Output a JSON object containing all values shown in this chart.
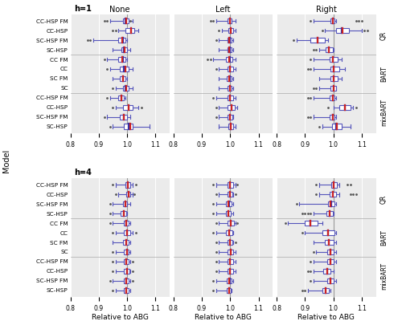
{
  "title_h1": "h=1",
  "title_h4": "h=4",
  "xlabel": "Relative to ABG",
  "ylabel": "Model",
  "col_labels": [
    "None",
    "Left",
    "Right"
  ],
  "row_labels": [
    "CC-HSP FM",
    "CC-HSP",
    "SC-HSP FM",
    "SC-HSP",
    "CC FM",
    "CC",
    "SC FM",
    "SC",
    "CC-HSP FM",
    "CC-HSP",
    "SC-HSP FM",
    "SC-HSP"
  ],
  "group_labels": [
    "QR",
    "BART",
    "mixBART"
  ],
  "h1_data": {
    "None": {
      "CC-HSP FM": {
        "q1": 0.985,
        "median": 0.995,
        "q3": 1.005,
        "whislo": 0.94,
        "whishi": 1.02,
        "mean": 0.997,
        "fliers": [
          0.93,
          0.92,
          1.01
        ]
      },
      "CC-HSP": {
        "q1": 0.995,
        "median": 1.015,
        "q3": 1.025,
        "whislo": 0.97,
        "whishi": 1.04,
        "mean": 1.015,
        "fliers": [
          0.96,
          0.95
        ]
      },
      "SC-HSP FM": {
        "q1": 0.97,
        "median": 0.985,
        "q3": 0.995,
        "whislo": 0.88,
        "whishi": 1.0,
        "mean": 0.982,
        "fliers": [
          0.87,
          0.86
        ]
      },
      "SC-HSP": {
        "q1": 0.98,
        "median": 0.99,
        "q3": 1.0,
        "whislo": 0.95,
        "whishi": 1.01,
        "mean": 0.991,
        "fliers": []
      },
      "CC FM": {
        "q1": 0.97,
        "median": 0.985,
        "q3": 0.995,
        "whislo": 0.93,
        "whishi": 1.0,
        "mean": 0.984,
        "fliers": [
          0.92
        ]
      },
      "CC": {
        "q1": 0.975,
        "median": 0.99,
        "q3": 1.005,
        "whislo": 0.94,
        "whishi": 1.02,
        "mean": 0.993,
        "fliers": [
          0.93
        ]
      },
      "SC FM": {
        "q1": 0.975,
        "median": 0.985,
        "q3": 0.995,
        "whislo": 0.95,
        "whishi": 1.0,
        "mean": 0.985,
        "fliers": []
      },
      "SC": {
        "q1": 0.985,
        "median": 0.995,
        "q3": 1.005,
        "whislo": 0.96,
        "whishi": 1.02,
        "mean": 0.996,
        "fliers": [
          0.95
        ]
      },
      "CC-HSP FM2": {
        "q1": 0.97,
        "median": 0.98,
        "q3": 0.99,
        "whislo": 0.94,
        "whishi": 0.995,
        "mean": 0.979,
        "fliers": [
          0.93
        ]
      },
      "CC-HSP2": {
        "q1": 0.985,
        "median": 1.005,
        "q3": 1.02,
        "whislo": 0.96,
        "whishi": 1.04,
        "mean": 1.007,
        "fliers": [
          0.95,
          1.05
        ]
      },
      "SC-HSP FM2": {
        "q1": 0.975,
        "median": 0.99,
        "q3": 1.0,
        "whislo": 0.93,
        "whishi": 1.01,
        "mean": 0.99,
        "fliers": [
          0.92
        ]
      },
      "SC-HSP2": {
        "q1": 0.99,
        "median": 1.005,
        "q3": 1.02,
        "whislo": 0.95,
        "whishi": 1.08,
        "mean": 1.01,
        "fliers": [
          0.94
        ]
      }
    },
    "Left": {
      "CC-HSP FM": {
        "q1": 0.99,
        "median": 0.998,
        "q3": 1.006,
        "whislo": 0.95,
        "whishi": 1.02,
        "mean": 0.998,
        "fliers": [
          0.94,
          0.93
        ]
      },
      "CC-HSP": {
        "q1": 0.993,
        "median": 1.002,
        "q3": 1.01,
        "whislo": 0.97,
        "whishi": 1.02,
        "mean": 1.002,
        "fliers": [
          0.96
        ]
      },
      "SC-HSP FM": {
        "q1": 0.99,
        "median": 0.998,
        "q3": 1.005,
        "whislo": 0.96,
        "whishi": 1.01,
        "mean": 0.997,
        "fliers": [
          0.95
        ]
      },
      "SC-HSP": {
        "q1": 0.99,
        "median": 0.998,
        "q3": 1.005,
        "whislo": 0.96,
        "whishi": 1.01,
        "mean": 0.997,
        "fliers": []
      },
      "CC FM": {
        "q1": 0.985,
        "median": 0.998,
        "q3": 1.008,
        "whislo": 0.94,
        "whishi": 1.02,
        "mean": 0.997,
        "fliers": [
          0.93,
          0.92
        ]
      },
      "CC": {
        "q1": 0.99,
        "median": 1.0,
        "q3": 1.01,
        "whislo": 0.96,
        "whishi": 1.02,
        "mean": 1.0,
        "fliers": [
          0.95
        ]
      },
      "SC FM": {
        "q1": 0.988,
        "median": 0.998,
        "q3": 1.005,
        "whislo": 0.96,
        "whishi": 1.01,
        "mean": 0.997,
        "fliers": []
      },
      "SC": {
        "q1": 0.99,
        "median": 0.999,
        "q3": 1.006,
        "whislo": 0.96,
        "whishi": 1.01,
        "mean": 0.999,
        "fliers": []
      },
      "CC-HSP FM2": {
        "q1": 0.99,
        "median": 1.0,
        "q3": 1.01,
        "whislo": 0.95,
        "whishi": 1.02,
        "mean": 1.0,
        "fliers": [
          0.94
        ]
      },
      "CC-HSP2": {
        "q1": 0.992,
        "median": 1.005,
        "q3": 1.015,
        "whislo": 0.96,
        "whishi": 1.025,
        "mean": 1.005,
        "fliers": [
          0.95
        ]
      },
      "SC-HSP FM2": {
        "q1": 0.99,
        "median": 1.0,
        "q3": 1.008,
        "whislo": 0.96,
        "whishi": 1.01,
        "mean": 0.999,
        "fliers": [
          0.95
        ]
      },
      "SC-HSP2": {
        "q1": 0.993,
        "median": 1.003,
        "q3": 1.01,
        "whislo": 0.96,
        "whishi": 1.02,
        "mean": 1.003,
        "fliers": []
      }
    },
    "Right": {
      "CC-HSP FM": {
        "q1": 0.99,
        "median": 0.998,
        "q3": 1.005,
        "whislo": 0.93,
        "whishi": 1.01,
        "mean": 0.997,
        "fliers": [
          0.92,
          1.08,
          1.09,
          1.1
        ]
      },
      "CC-HSP": {
        "q1": 1.01,
        "median": 1.03,
        "q3": 1.055,
        "whislo": 0.97,
        "whishi": 1.1,
        "mean": 1.033,
        "fliers": [
          0.96,
          1.11,
          1.12
        ]
      },
      "SC-HSP FM": {
        "q1": 0.92,
        "median": 0.945,
        "q3": 0.97,
        "whislo": 0.87,
        "whishi": 0.98,
        "mean": 0.943,
        "fliers": [
          0.86
        ]
      },
      "SC-HSP": {
        "q1": 0.972,
        "median": 0.985,
        "q3": 0.997,
        "whislo": 0.95,
        "whishi": 1.0,
        "mean": 0.984,
        "fliers": [
          0.94,
          0.93
        ]
      },
      "CC FM": {
        "q1": 0.988,
        "median": 0.998,
        "q3": 1.015,
        "whislo": 0.93,
        "whishi": 1.03,
        "mean": 0.999,
        "fliers": [
          0.92
        ]
      },
      "CC": {
        "q1": 0.99,
        "median": 1.0,
        "q3": 1.02,
        "whislo": 0.93,
        "whishi": 1.04,
        "mean": 1.001,
        "fliers": [
          0.92,
          0.91
        ]
      },
      "SC FM": {
        "q1": 0.99,
        "median": 1.0,
        "q3": 1.015,
        "whislo": 0.95,
        "whishi": 1.03,
        "mean": 1.0,
        "fliers": []
      },
      "SC": {
        "q1": 0.99,
        "median": 1.0,
        "q3": 1.01,
        "whislo": 0.95,
        "whishi": 1.01,
        "mean": 1.0,
        "fliers": [
          0.94,
          0.93
        ]
      },
      "CC-HSP FM2": {
        "q1": 0.988,
        "median": 0.997,
        "q3": 1.005,
        "whislo": 0.93,
        "whishi": 1.01,
        "mean": 0.997,
        "fliers": [
          0.92,
          0.91
        ]
      },
      "CC-HSP2": {
        "q1": 1.02,
        "median": 1.04,
        "q3": 1.06,
        "whislo": 1.0,
        "whishi": 1.07,
        "mean": 1.04,
        "fliers": [
          0.98,
          1.08
        ]
      },
      "SC-HSP FM2": {
        "q1": 0.988,
        "median": 0.997,
        "q3": 1.005,
        "whislo": 0.93,
        "whishi": 1.01,
        "mean": 0.997,
        "fliers": [
          0.92,
          0.91
        ]
      },
      "SC-HSP2": {
        "q1": 0.995,
        "median": 1.01,
        "q3": 1.03,
        "whislo": 0.96,
        "whishi": 1.06,
        "mean": 1.013,
        "fliers": [
          0.95
        ]
      }
    }
  },
  "h4_data": {
    "None": {
      "CC-HSP FM": {
        "q1": 0.993,
        "median": 1.003,
        "q3": 1.01,
        "whislo": 0.96,
        "whishi": 1.02,
        "mean": 1.003,
        "fliers": [
          0.95,
          1.03
        ]
      },
      "CC-HSP": {
        "q1": 0.998,
        "median": 1.005,
        "q3": 1.012,
        "whislo": 0.97,
        "whishi": 1.02,
        "mean": 1.005,
        "fliers": [
          0.96,
          1.025
        ]
      },
      "SC-HSP FM": {
        "q1": 0.985,
        "median": 0.993,
        "q3": 1.0,
        "whislo": 0.95,
        "whishi": 1.01,
        "mean": 0.993,
        "fliers": [
          0.94
        ]
      },
      "SC-HSP": {
        "q1": 0.978,
        "median": 0.988,
        "q3": 0.998,
        "whislo": 0.95,
        "whishi": 1.0,
        "mean": 0.988,
        "fliers": [
          0.94
        ]
      },
      "CC FM": {
        "q1": 0.988,
        "median": 0.998,
        "q3": 1.005,
        "whislo": 0.95,
        "whishi": 1.01,
        "mean": 0.997,
        "fliers": [
          0.94
        ]
      },
      "CC": {
        "q1": 0.99,
        "median": 1.0,
        "q3": 1.01,
        "whislo": 0.96,
        "whishi": 1.02,
        "mean": 1.0,
        "fliers": [
          0.95,
          1.03
        ]
      },
      "SC FM": {
        "q1": 0.985,
        "median": 0.997,
        "q3": 1.005,
        "whislo": 0.95,
        "whishi": 1.01,
        "mean": 0.996,
        "fliers": []
      },
      "SC": {
        "q1": 0.988,
        "median": 0.999,
        "q3": 1.007,
        "whislo": 0.96,
        "whishi": 1.01,
        "mean": 0.999,
        "fliers": [
          0.95
        ]
      },
      "CC-HSP FM2": {
        "q1": 0.99,
        "median": 0.998,
        "q3": 1.006,
        "whislo": 0.96,
        "whishi": 1.01,
        "mean": 0.998,
        "fliers": [
          0.95,
          1.02
        ]
      },
      "CC-HSP2": {
        "q1": 0.99,
        "median": 1.0,
        "q3": 1.008,
        "whislo": 0.96,
        "whishi": 1.01,
        "mean": 0.999,
        "fliers": [
          0.95,
          1.02
        ]
      },
      "SC-HSP FM2": {
        "q1": 0.988,
        "median": 0.998,
        "q3": 1.005,
        "whislo": 0.95,
        "whishi": 1.01,
        "mean": 0.997,
        "fliers": [
          0.94,
          1.02
        ]
      },
      "SC-HSP2": {
        "q1": 0.988,
        "median": 0.998,
        "q3": 1.006,
        "whislo": 0.96,
        "whishi": 1.01,
        "mean": 0.998,
        "fliers": [
          0.95
        ]
      }
    },
    "Left": {
      "CC-HSP FM": {
        "q1": 0.99,
        "median": 1.0,
        "q3": 1.01,
        "whislo": 0.95,
        "whishi": 1.02,
        "mean": 1.0,
        "fliers": [
          0.94,
          1.025
        ]
      },
      "CC-HSP": {
        "q1": 0.99,
        "median": 1.0,
        "q3": 1.008,
        "whislo": 0.96,
        "whishi": 1.01,
        "mean": 0.999,
        "fliers": [
          0.95,
          1.02
        ]
      },
      "SC-HSP FM": {
        "q1": 0.985,
        "median": 0.995,
        "q3": 1.005,
        "whislo": 0.95,
        "whishi": 1.01,
        "mean": 0.994,
        "fliers": [
          0.94
        ]
      },
      "SC-HSP": {
        "q1": 0.985,
        "median": 0.994,
        "q3": 1.002,
        "whislo": 0.95,
        "whishi": 1.01,
        "mean": 0.994,
        "fliers": [
          0.94
        ]
      },
      "CC FM": {
        "q1": 0.992,
        "median": 1.003,
        "q3": 1.012,
        "whislo": 0.96,
        "whishi": 1.02,
        "mean": 1.002,
        "fliers": [
          0.95,
          1.025
        ]
      },
      "CC": {
        "q1": 0.985,
        "median": 0.997,
        "q3": 1.007,
        "whislo": 0.95,
        "whishi": 1.01,
        "mean": 0.996,
        "fliers": [
          0.94
        ]
      },
      "SC FM": {
        "q1": 0.99,
        "median": 1.0,
        "q3": 1.008,
        "whislo": 0.96,
        "whishi": 1.01,
        "mean": 0.999,
        "fliers": [
          0.95,
          1.02
        ]
      },
      "SC": {
        "q1": 0.99,
        "median": 1.001,
        "q3": 1.01,
        "whislo": 0.96,
        "whishi": 1.02,
        "mean": 1.001,
        "fliers": [
          0.95
        ]
      },
      "CC-HSP FM2": {
        "q1": 0.99,
        "median": 1.0,
        "q3": 1.01,
        "whislo": 0.96,
        "whishi": 1.02,
        "mean": 1.0,
        "fliers": [
          0.95
        ]
      },
      "CC-HSP2": {
        "q1": 0.99,
        "median": 1.0,
        "q3": 1.01,
        "whislo": 0.96,
        "whishi": 1.02,
        "mean": 1.0,
        "fliers": [
          0.95
        ]
      },
      "SC-HSP FM2": {
        "q1": 0.988,
        "median": 0.998,
        "q3": 1.006,
        "whislo": 0.95,
        "whishi": 1.01,
        "mean": 0.997,
        "fliers": [
          0.94
        ]
      },
      "SC-HSP2": {
        "q1": 0.987,
        "median": 0.996,
        "q3": 1.003,
        "whislo": 0.95,
        "whishi": 1.005,
        "mean": 0.995,
        "fliers": [
          0.94
        ]
      }
    },
    "Right": {
      "CC-HSP FM": {
        "q1": 0.993,
        "median": 1.002,
        "q3": 1.012,
        "whislo": 0.95,
        "whishi": 1.02,
        "mean": 1.002,
        "fliers": [
          0.94,
          1.05,
          1.06
        ]
      },
      "CC-HSP": {
        "q1": 0.988,
        "median": 0.998,
        "q3": 1.01,
        "whislo": 0.95,
        "whishi": 1.02,
        "mean": 0.998,
        "fliers": [
          0.94,
          1.06,
          1.07,
          1.08
        ]
      },
      "SC-HSP FM": {
        "q1": 0.98,
        "median": 0.993,
        "q3": 1.003,
        "whislo": 0.88,
        "whishi": 1.01,
        "mean": 0.99,
        "fliers": [
          0.87
        ]
      },
      "SC-HSP": {
        "q1": 0.976,
        "median": 0.988,
        "q3": 0.999,
        "whislo": 0.93,
        "whishi": 1.0,
        "mean": 0.988,
        "fliers": [
          0.92,
          0.91,
          0.9,
          0.89
        ]
      },
      "CC FM": {
        "q1": 0.9,
        "median": 0.92,
        "q3": 0.945,
        "whislo": 0.84,
        "whishi": 0.96,
        "mean": 0.919,
        "fliers": [
          0.83
        ]
      },
      "CC": {
        "q1": 0.96,
        "median": 0.98,
        "q3": 1.003,
        "whislo": 0.9,
        "whishi": 1.01,
        "mean": 0.98,
        "fliers": [
          0.89
        ]
      },
      "SC FM": {
        "q1": 0.97,
        "median": 0.985,
        "q3": 1.0,
        "whislo": 0.93,
        "whishi": 1.01,
        "mean": 0.985,
        "fliers": []
      },
      "SC": {
        "q1": 0.977,
        "median": 0.99,
        "q3": 1.001,
        "whislo": 0.94,
        "whishi": 1.01,
        "mean": 0.99,
        "fliers": [
          0.93
        ]
      },
      "CC-HSP FM2": {
        "q1": 0.978,
        "median": 0.99,
        "q3": 1.0,
        "whislo": 0.93,
        "whishi": 1.01,
        "mean": 0.989,
        "fliers": [
          0.92
        ]
      },
      "CC-HSP2": {
        "q1": 0.965,
        "median": 0.978,
        "q3": 0.99,
        "whislo": 0.93,
        "whishi": 1.0,
        "mean": 0.978,
        "fliers": [
          0.92,
          0.91
        ]
      },
      "SC-HSP FM2": {
        "q1": 0.978,
        "median": 0.99,
        "q3": 1.0,
        "whislo": 0.93,
        "whishi": 1.01,
        "mean": 0.989,
        "fliers": [
          0.92
        ]
      },
      "SC-HSP2": {
        "q1": 0.96,
        "median": 0.973,
        "q3": 0.985,
        "whislo": 0.91,
        "whishi": 0.99,
        "mean": 0.973,
        "fliers": [
          0.9,
          0.89
        ]
      }
    }
  },
  "box_color": "#5555bb",
  "median_color": "#3333aa",
  "mean_color": "#cc2222",
  "flier_color": "#555555",
  "bg_color": "#ebebeb",
  "vline_color": "#999999",
  "group_sep_color": "#aaaaaa"
}
